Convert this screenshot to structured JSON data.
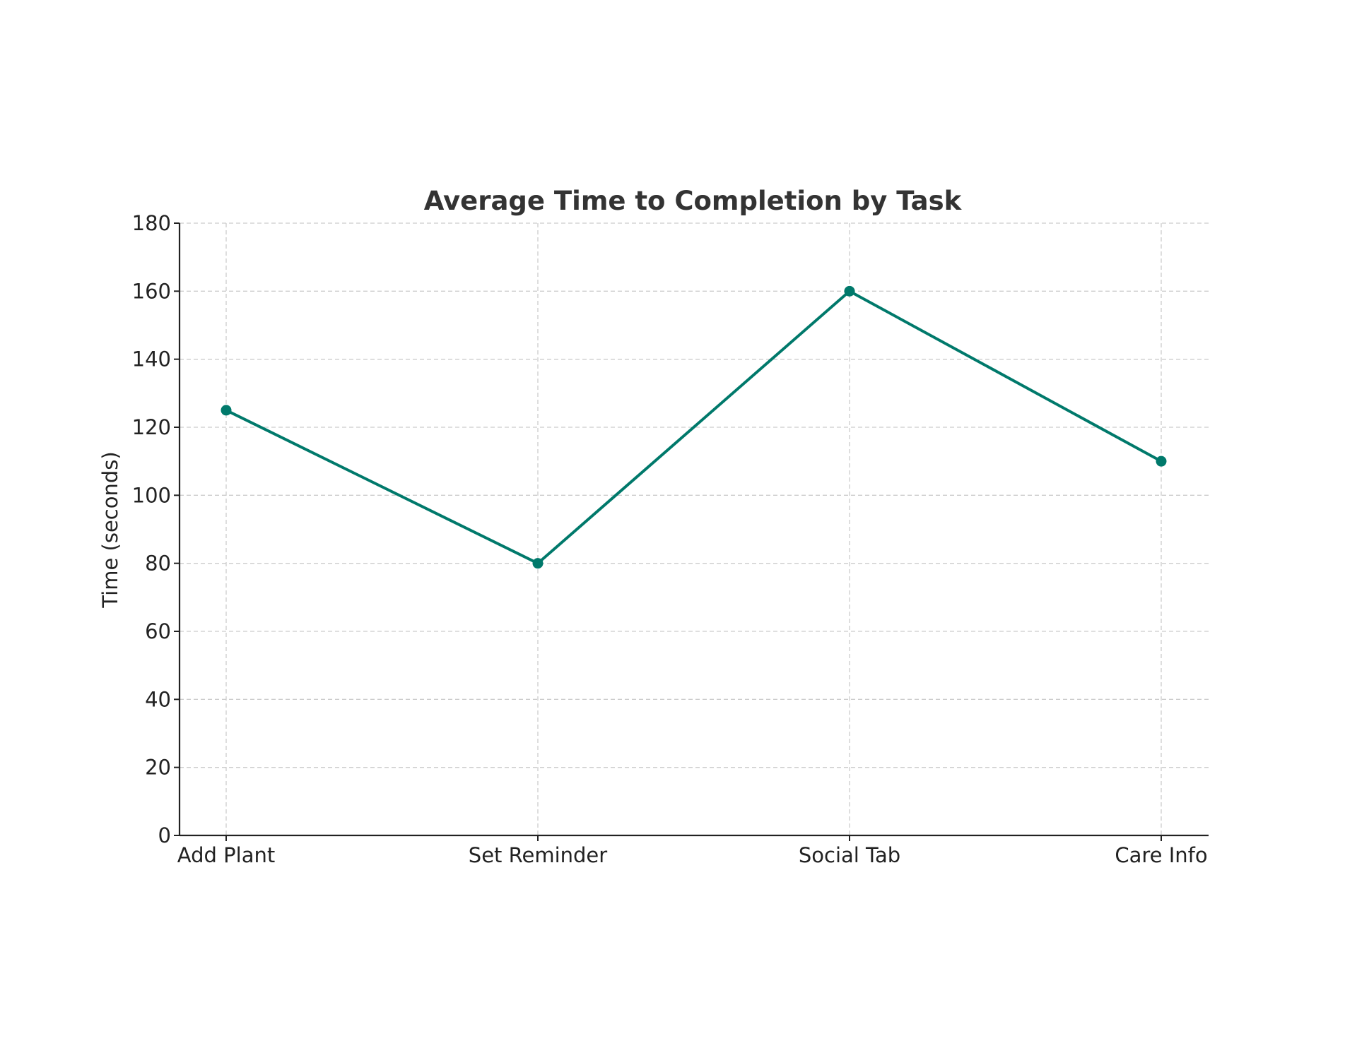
{
  "chart_data": {
    "type": "line",
    "title": "Average Time to Completion by Task",
    "xlabel": "",
    "ylabel": "Time (seconds)",
    "categories": [
      "Add Plant",
      "Set Reminder",
      "Social Tab",
      "Care Info"
    ],
    "series": [
      {
        "values": [
          125,
          80,
          160,
          110
        ],
        "color": "#00796b",
        "marker": "circle"
      }
    ],
    "ylim": [
      0,
      180
    ],
    "yticks": [
      0,
      20,
      40,
      60,
      80,
      100,
      120,
      140,
      160,
      180
    ],
    "grid": true,
    "legend": "none"
  }
}
